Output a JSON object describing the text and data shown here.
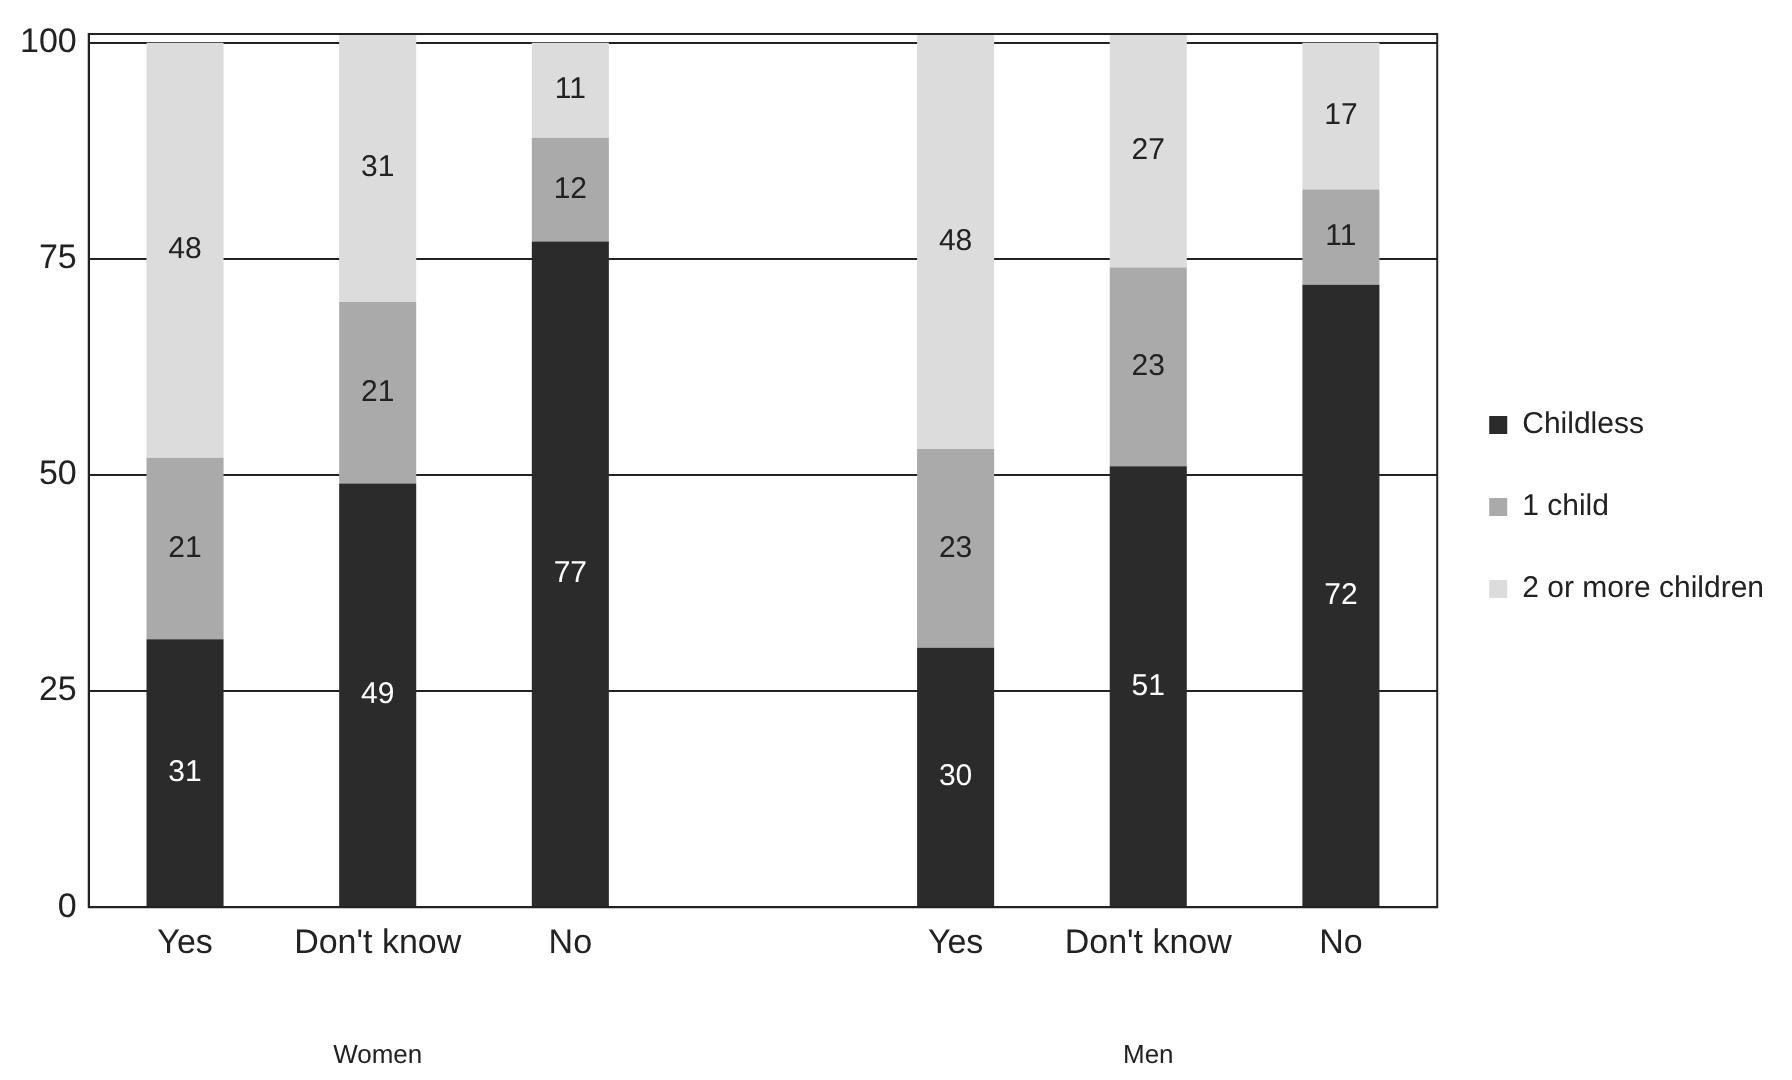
{
  "chart_data": {
    "type": "bar",
    "stacked": true,
    "categories": [
      "Yes",
      "Don't know",
      "No",
      null,
      "Yes",
      "Don't know",
      "No"
    ],
    "series": [
      {
        "name": "Childless",
        "color": "#2b2b2b",
        "values": [
          31,
          49,
          77,
          null,
          30,
          51,
          72
        ]
      },
      {
        "name": "1 child",
        "color": "#aaaaaa",
        "values": [
          21,
          21,
          12,
          null,
          23,
          23,
          11
        ]
      },
      {
        "name": "2 or more children",
        "color": "#dcdcdc",
        "values": [
          48,
          31,
          11,
          null,
          48,
          27,
          17
        ]
      }
    ],
    "ylim": [
      0,
      101
    ],
    "yticks": [
      0,
      25,
      50,
      75,
      100
    ],
    "grid": "y",
    "legend": "right",
    "data_labels": true,
    "annotations": [
      "Women",
      "Men"
    ]
  }
}
